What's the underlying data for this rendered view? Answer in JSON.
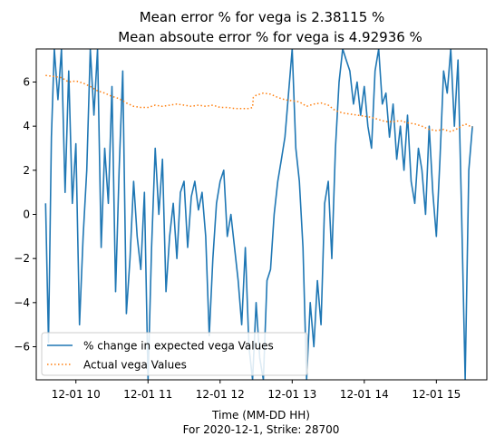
{
  "chart_data": {
    "type": "line",
    "title_line1": "Mean error % for vega is 2.38115 %",
    "title_line2": "Mean absoute error % for vega is 4.92936 %",
    "xlabel_line1": "Time (MM-DD HH)",
    "xlabel_line2": "For 2020-12-1, Strike: 28700",
    "ylabel": "",
    "xlim": [
      9.45,
      15.7
    ],
    "ylim": [
      -7.5,
      7.5
    ],
    "x_ticks": [
      {
        "value": 10,
        "label": "12-01 10"
      },
      {
        "value": 11,
        "label": "12-01 11"
      },
      {
        "value": 12,
        "label": "12-01 12"
      },
      {
        "value": 13,
        "label": "12-01 13"
      },
      {
        "value": 14,
        "label": "12-01 14"
      },
      {
        "value": 15,
        "label": "12-01 15"
      }
    ],
    "y_ticks": [
      {
        "value": 6,
        "label": "6"
      },
      {
        "value": 4,
        "label": "4"
      },
      {
        "value": 2,
        "label": "2"
      },
      {
        "value": 0,
        "label": "0"
      },
      {
        "value": -2,
        "label": "−2"
      },
      {
        "value": -4,
        "label": "−4"
      },
      {
        "value": -6,
        "label": "−6"
      }
    ],
    "grid": false,
    "legend_position": "lower-left",
    "series": [
      {
        "name": "% change in expected vega Values",
        "color": "#1f77b4",
        "style": "solid",
        "x": [
          9.58,
          9.62,
          9.66,
          9.7,
          9.75,
          9.8,
          9.85,
          9.9,
          9.95,
          10.0,
          10.05,
          10.1,
          10.15,
          10.2,
          10.25,
          10.3,
          10.35,
          10.4,
          10.45,
          10.5,
          10.55,
          10.6,
          10.65,
          10.7,
          10.75,
          10.8,
          10.85,
          10.9,
          10.95,
          11.0,
          11.05,
          11.1,
          11.15,
          11.2,
          11.25,
          11.3,
          11.35,
          11.4,
          11.45,
          11.5,
          11.55,
          11.6,
          11.65,
          11.7,
          11.75,
          11.8,
          11.85,
          11.9,
          11.95,
          12.0,
          12.05,
          12.1,
          12.15,
          12.2,
          12.25,
          12.3,
          12.35,
          12.4,
          12.45,
          12.5,
          12.55,
          12.6,
          12.65,
          12.7,
          12.75,
          12.8,
          12.85,
          12.9,
          12.95,
          13.0,
          13.05,
          13.1,
          13.15,
          13.2,
          13.25,
          13.3,
          13.35,
          13.4,
          13.45,
          13.5,
          13.55,
          13.6,
          13.65,
          13.7,
          13.75,
          13.8,
          13.85,
          13.9,
          13.95,
          14.0,
          14.05,
          14.1,
          14.15,
          14.2,
          14.25,
          14.3,
          14.35,
          14.4,
          14.45,
          14.5,
          14.55,
          14.6,
          14.65,
          14.7,
          14.75,
          14.8,
          14.85,
          14.9,
          14.95,
          15.0,
          15.05,
          15.1,
          15.15,
          15.2,
          15.25,
          15.3,
          15.35,
          15.4,
          15.45,
          15.5
        ],
        "values": [
          0.5,
          -5.8,
          3.5,
          7.5,
          5.2,
          7.5,
          1.0,
          6.5,
          0.5,
          3.2,
          -5.0,
          -1.0,
          2.0,
          7.5,
          4.5,
          7.5,
          -1.5,
          3.0,
          0.5,
          5.8,
          -3.5,
          2.0,
          6.5,
          -4.5,
          -2.0,
          1.5,
          -1.0,
          -2.5,
          1.0,
          -7.5,
          -1.5,
          3.0,
          0.0,
          2.5,
          -3.5,
          -1.0,
          0.5,
          -2.0,
          1.0,
          1.5,
          -1.5,
          0.8,
          1.5,
          0.2,
          1.0,
          -1.0,
          -5.5,
          -2.0,
          0.5,
          1.5,
          2.0,
          -1.0,
          0.0,
          -1.5,
          -3.0,
          -5.0,
          -1.5,
          -6.0,
          -7.5,
          -4.0,
          -6.5,
          -7.5,
          -3.0,
          -2.5,
          0.0,
          1.5,
          2.5,
          3.5,
          5.5,
          7.5,
          3.0,
          1.5,
          -1.5,
          -7.5,
          -4.0,
          -6.0,
          -3.0,
          -5.0,
          0.5,
          1.5,
          -2.0,
          3.0,
          6.0,
          7.5,
          7.0,
          6.5,
          5.0,
          6.0,
          4.5,
          5.8,
          4.0,
          3.0,
          6.5,
          7.5,
          5.0,
          5.5,
          3.5,
          5.0,
          2.5,
          4.0,
          2.0,
          4.5,
          1.5,
          0.5,
          3.0,
          2.0,
          0.0,
          4.0,
          1.0,
          -1.0,
          2.5,
          6.5,
          5.5,
          7.5,
          4.0,
          7.0,
          0.0,
          -7.5,
          2.0,
          4.0
        ]
      },
      {
        "name": "Actual vega Values",
        "color": "#ff7f0e",
        "style": "dotted",
        "x": [
          9.58,
          9.7,
          9.8,
          9.9,
          10.0,
          10.1,
          10.2,
          10.3,
          10.4,
          10.5,
          10.6,
          10.7,
          10.8,
          10.9,
          11.0,
          11.1,
          11.2,
          11.3,
          11.4,
          11.5,
          11.6,
          11.7,
          11.8,
          11.9,
          12.0,
          12.1,
          12.2,
          12.3,
          12.4,
          12.45,
          12.46,
          12.5,
          12.6,
          12.7,
          12.8,
          12.9,
          13.0,
          13.1,
          13.2,
          13.3,
          13.4,
          13.5,
          13.6,
          13.7,
          13.8,
          13.9,
          14.0,
          14.1,
          14.2,
          14.3,
          14.4,
          14.5,
          14.6,
          14.7,
          14.8,
          14.9,
          15.0,
          15.1,
          15.2,
          15.3,
          15.4,
          15.5
        ],
        "values": [
          6.3,
          6.25,
          6.2,
          6.0,
          6.05,
          5.95,
          5.8,
          5.6,
          5.5,
          5.35,
          5.25,
          5.05,
          4.9,
          4.85,
          4.85,
          4.95,
          4.9,
          4.95,
          5.0,
          4.95,
          4.9,
          4.95,
          4.9,
          4.95,
          4.85,
          4.85,
          4.8,
          4.8,
          4.8,
          4.85,
          5.3,
          5.4,
          5.5,
          5.45,
          5.3,
          5.2,
          5.15,
          5.1,
          4.9,
          5.0,
          5.05,
          4.95,
          4.7,
          4.6,
          4.55,
          4.5,
          4.45,
          4.4,
          4.3,
          4.2,
          4.2,
          4.25,
          4.15,
          4.1,
          4.0,
          3.85,
          3.8,
          3.85,
          3.75,
          3.9,
          4.1,
          3.95
        ]
      }
    ]
  }
}
